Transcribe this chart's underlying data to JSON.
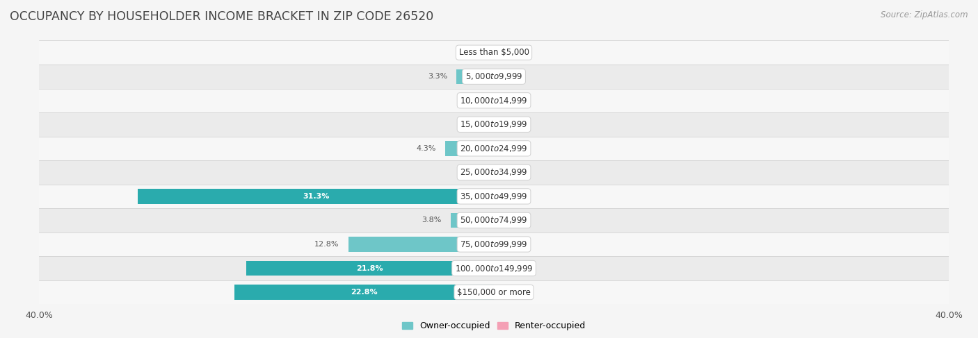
{
  "title": "OCCUPANCY BY HOUSEHOLDER INCOME BRACKET IN ZIP CODE 26520",
  "source": "Source: ZipAtlas.com",
  "categories": [
    "Less than $5,000",
    "$5,000 to $9,999",
    "$10,000 to $14,999",
    "$15,000 to $19,999",
    "$20,000 to $24,999",
    "$25,000 to $34,999",
    "$35,000 to $49,999",
    "$50,000 to $74,999",
    "$75,000 to $99,999",
    "$100,000 to $149,999",
    "$150,000 or more"
  ],
  "owner_values": [
    0.0,
    3.3,
    0.0,
    0.0,
    4.3,
    0.0,
    31.3,
    3.8,
    12.8,
    21.8,
    22.8
  ],
  "renter_values": [
    0.0,
    0.0,
    0.0,
    0.0,
    0.0,
    0.0,
    0.0,
    0.0,
    0.0,
    0.0,
    0.0
  ],
  "owner_color_light": "#6ec6c8",
  "owner_color_dark": "#2aabad",
  "renter_color": "#f4a0b5",
  "row_bg_color_light": "#f7f7f7",
  "row_bg_color_dark": "#ebebeb",
  "axis_limit": 40.0,
  "bar_height": 0.62,
  "title_fontsize": 12.5,
  "label_fontsize": 8.5,
  "tick_fontsize": 9,
  "source_fontsize": 8.5,
  "legend_fontsize": 9,
  "value_fontsize": 8,
  "background_color": "#f5f5f5",
  "text_color": "#555555",
  "title_color": "#444444"
}
